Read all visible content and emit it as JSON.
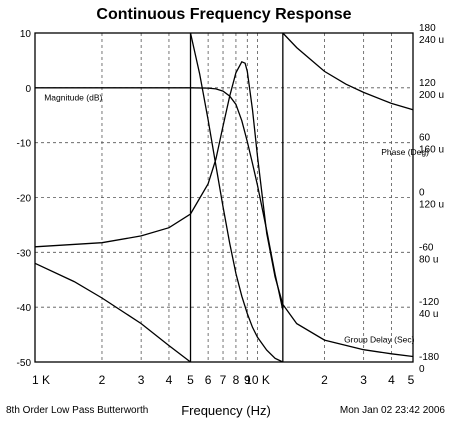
{
  "chart_data": {
    "type": "line",
    "title": "Continuous Frequency Response",
    "xlabel": "Frequency (Hz)",
    "x_scale": "log",
    "xlim": [
      1000,
      50000
    ],
    "x_tick_labels": [
      {
        "value": 1000,
        "label": "1 K"
      },
      {
        "value": 2000,
        "label": "2"
      },
      {
        "value": 3000,
        "label": "3"
      },
      {
        "value": 4000,
        "label": "4"
      },
      {
        "value": 5000,
        "label": "5"
      },
      {
        "value": 6000,
        "label": "6"
      },
      {
        "value": 7000,
        "label": "7"
      },
      {
        "value": 8000,
        "label": "8"
      },
      {
        "value": 9000,
        "label": "9"
      },
      {
        "value": 10000,
        "label": "10 K"
      },
      {
        "value": 20000,
        "label": "2"
      },
      {
        "value": 30000,
        "label": "3"
      },
      {
        "value": 40000,
        "label": "4"
      },
      {
        "value": 50000,
        "label": "5"
      }
    ],
    "x_gridlines": [
      2000,
      3000,
      4000,
      5000,
      6000,
      7000,
      8000,
      9000,
      10000,
      20000,
      30000,
      40000
    ],
    "left_axis": {
      "ylim": [
        -50,
        10
      ],
      "ticks": [
        10,
        0,
        -10,
        -20,
        -30,
        -40,
        -50
      ],
      "tick_labels": [
        "10",
        "0",
        "-10",
        "-20",
        "-30",
        "-40",
        "-50"
      ]
    },
    "right_axes": [
      {
        "name": "phase",
        "ylim": [
          -180,
          180
        ],
        "ticks": [
          180,
          120,
          60,
          0,
          -60,
          -120,
          -180
        ],
        "tick_labels": [
          "180",
          "120",
          "60",
          "0",
          "-60",
          "-120",
          "-180"
        ]
      },
      {
        "name": "group_delay",
        "ylim": [
          0,
          240
        ],
        "ticks": [
          240,
          200,
          160,
          120,
          80,
          40,
          0
        ],
        "tick_labels": [
          "240 u",
          "200 u",
          "160 u",
          "120 u",
          "80 u",
          "40 u",
          "0"
        ]
      }
    ],
    "grid": true,
    "series": [
      {
        "name": "Magnitude (dB)",
        "axis": "left",
        "x": [
          1000,
          3000,
          5000,
          6000,
          6500,
          7000,
          7500,
          8000,
          8500,
          9000,
          9500,
          10000,
          11000,
          12000,
          13000
        ],
        "y": [
          0,
          0,
          0,
          -0.05,
          -0.2,
          -0.6,
          -1.5,
          -3,
          -6,
          -9.8,
          -13.8,
          -17.8,
          -26,
          -34,
          -40.5
        ]
      },
      {
        "name": "Phase (Deg)",
        "axis": "phase",
        "segments": [
          {
            "x": [
              1000,
              1500,
              2000,
              3000,
              4000,
              5000
            ],
            "y": [
              -72,
              -92,
              -110,
              -138,
              -162,
              -180
            ]
          },
          {
            "x": [
              5000,
              5500,
              6000,
              6500,
              7000,
              7500,
              8000,
              8500,
              9000,
              9500,
              10000,
              11000,
              12000,
              13000
            ],
            "y": [
              180,
              135,
              85,
              35,
              -10,
              -50,
              -83,
              -108,
              -127,
              -142,
              -153,
              -167,
              -176,
              -180
            ]
          },
          {
            "x": [
              13000,
              15000,
              20000,
              25000,
              30000,
              40000,
              50000
            ],
            "y": [
              180,
              164,
              138,
              124,
              115,
              103,
              96
            ]
          }
        ]
      },
      {
        "name": "Group Delay (Sec)",
        "axis": "group_delay",
        "x": [
          1000,
          2000,
          3000,
          4000,
          5000,
          6000,
          6500,
          7000,
          7500,
          8000,
          8500,
          8800,
          9000,
          9500,
          10000,
          11000,
          12000,
          13000,
          15000,
          20000,
          30000,
          40000,
          50000
        ],
        "y": [
          84,
          87,
          92,
          98,
          108,
          130,
          148,
          172,
          194,
          211,
          219,
          218,
          212,
          184,
          150,
          94,
          62,
          42,
          28,
          16,
          9,
          6,
          4
        ]
      }
    ],
    "annotations": [
      {
        "text": "Magnitude (dB)",
        "x": 1100,
        "axis": "left",
        "y": -1.8
      },
      {
        "text": "Phase (Deg)",
        "x": 36000,
        "axis": "left",
        "y": -11.7
      },
      {
        "text": "Group Delay (Sec)",
        "x": 24500,
        "axis": "left",
        "y": -45.9
      }
    ],
    "footer_left": "8th Order Low Pass Butterworth",
    "footer_right": "Mon Jan 02 23:42 2006"
  }
}
